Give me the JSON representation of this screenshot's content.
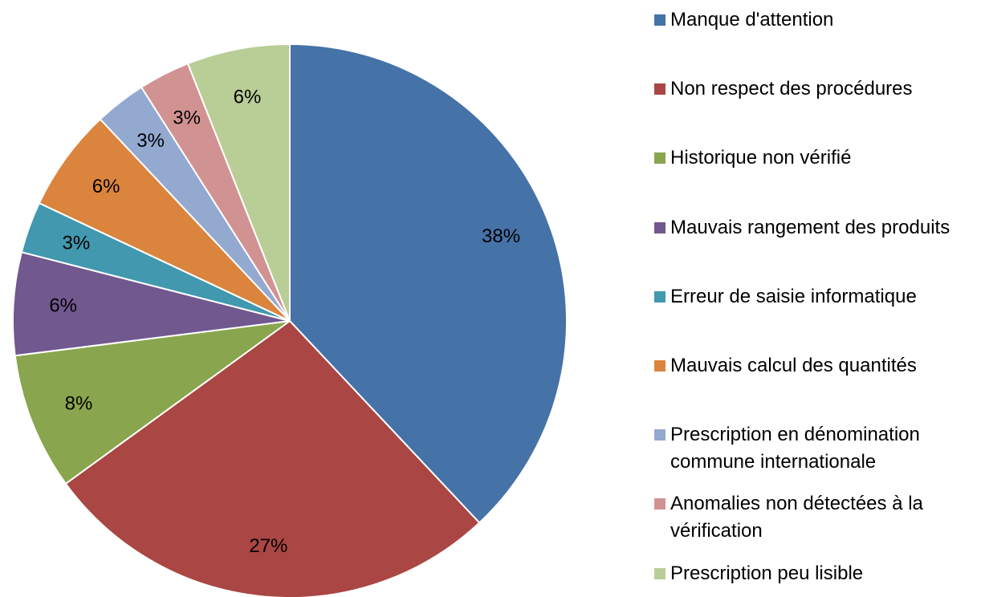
{
  "chart_data": {
    "type": "pie",
    "categories": [
      "Manque d'attention",
      "Non respect des procédures",
      "Historique non vérifié",
      "Mauvais rangement des produits",
      "Erreur de saisie informatique",
      "Mauvais calcul des quantités",
      "Prescription en dénomination commune internationale",
      "Anomalies non détectées à la vérification",
      "Prescription peu lisible"
    ],
    "values": [
      38,
      27,
      8,
      6,
      3,
      6,
      3,
      3,
      6
    ],
    "value_labels": [
      "38%",
      "27%",
      "8%",
      "6%",
      "3%",
      "6%",
      "3%",
      "3%",
      "6%"
    ],
    "colors": [
      "#4572a7",
      "#aa4643",
      "#89a54e",
      "#71588f",
      "#4198af",
      "#db843d",
      "#93a9cf",
      "#d19392",
      "#b9cd96"
    ],
    "legend": "right"
  }
}
